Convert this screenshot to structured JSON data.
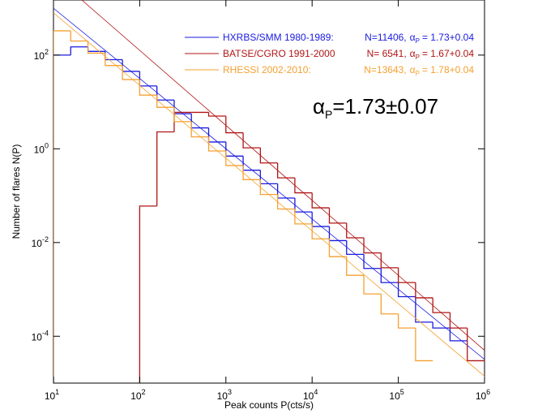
{
  "chart_data": {
    "type": "histogram",
    "x_label": "Peak counts P(cts/s)",
    "y_label": "Number of flares N(P)",
    "log_x": true,
    "log_y": true,
    "xlim": [
      10,
      1000000
    ],
    "ylim": [
      1e-05,
      1500
    ],
    "xticks": [
      {
        "value": 10,
        "label": "10",
        "power": "1"
      },
      {
        "value": 100,
        "label": "10",
        "power": "2"
      },
      {
        "value": 1000,
        "label": "10",
        "power": "3"
      },
      {
        "value": 10000,
        "label": "10",
        "power": "4"
      },
      {
        "value": 100000,
        "label": "10",
        "power": "5"
      },
      {
        "value": 1000000,
        "label": "10",
        "power": "6"
      }
    ],
    "yticks": [
      {
        "value": 0.0001,
        "label": "10",
        "power": "-4"
      },
      {
        "value": 0.01,
        "label": "10",
        "power": "-2"
      },
      {
        "value": 1,
        "label": "10",
        "power": "0"
      },
      {
        "value": 100,
        "label": "10",
        "power": "2"
      }
    ],
    "bins": [
      10,
      15.85,
      25.12,
      39.81,
      63.1,
      100,
      158.5,
      251.2,
      398.1,
      631,
      1000,
      1585,
      2512,
      3981,
      6310,
      10000,
      15850,
      25120,
      39810,
      63100,
      100000,
      158500,
      251200,
      398100,
      631000,
      1000000
    ],
    "series": [
      {
        "name": "HXRBS/SMM 1980-1989:",
        "n": "N=11406,",
        "alpha": "α",
        "alpha_sub": "P",
        "alpha_value": "= 1.73+0.04",
        "color": "#1a1adf",
        "values": [
          100,
          150,
          120,
          80,
          45,
          22,
          11,
          5.6,
          2.8,
          1.4,
          0.7,
          0.35,
          0.18,
          0.089,
          0.045,
          0.022,
          0.011,
          0.0056,
          0.0028,
          0.0014,
          0.0007,
          0.0002,
          0.00015,
          8e-05,
          null
        ],
        "fit": {
          "x": [
            10,
            1000000
          ],
          "y": [
            1000,
            3.2e-05
          ]
        }
      },
      {
        "name": "BATSE/CGRO 1991-2000",
        "n": "N= 6541,",
        "alpha": "α",
        "alpha_sub": "P",
        "alpha_value": "= 1.67+0.04",
        "color": "#b01515",
        "values": [
          null,
          null,
          null,
          null,
          null,
          0.06,
          2.3,
          6,
          6,
          5,
          2.2,
          1.05,
          0.5,
          0.24,
          0.115,
          0.055,
          0.026,
          0.0126,
          0.006,
          0.0029,
          0.0014,
          0.00066,
          0.00032,
          0.00015,
          3e-05
        ],
        "fit": {
          "x": [
            20,
            1000000
          ],
          "y": [
            1660,
            5e-05
          ]
        }
      },
      {
        "name": "RHESSI 2002-2010:",
        "n": "N=13643,",
        "alpha": "α",
        "alpha_sub": "P",
        "alpha_value": "= 1.78+0.04",
        "color": "#f5a030",
        "values": [
          330,
          200,
          110,
          60,
          30,
          14,
          7.7,
          3.8,
          1.8,
          0.9,
          0.44,
          0.22,
          0.106,
          0.052,
          0.025,
          0.012,
          0.005,
          0.002,
          0.0008,
          0.0003,
          0.00015,
          3e-05,
          null,
          null,
          null
        ],
        "fit": {
          "x": [
            10,
            1000000
          ],
          "y": [
            800,
            1.4e-05
          ]
        }
      }
    ],
    "annotation": {
      "symbol": "α",
      "sub": "P",
      "text": "=1.73±0.07"
    }
  }
}
